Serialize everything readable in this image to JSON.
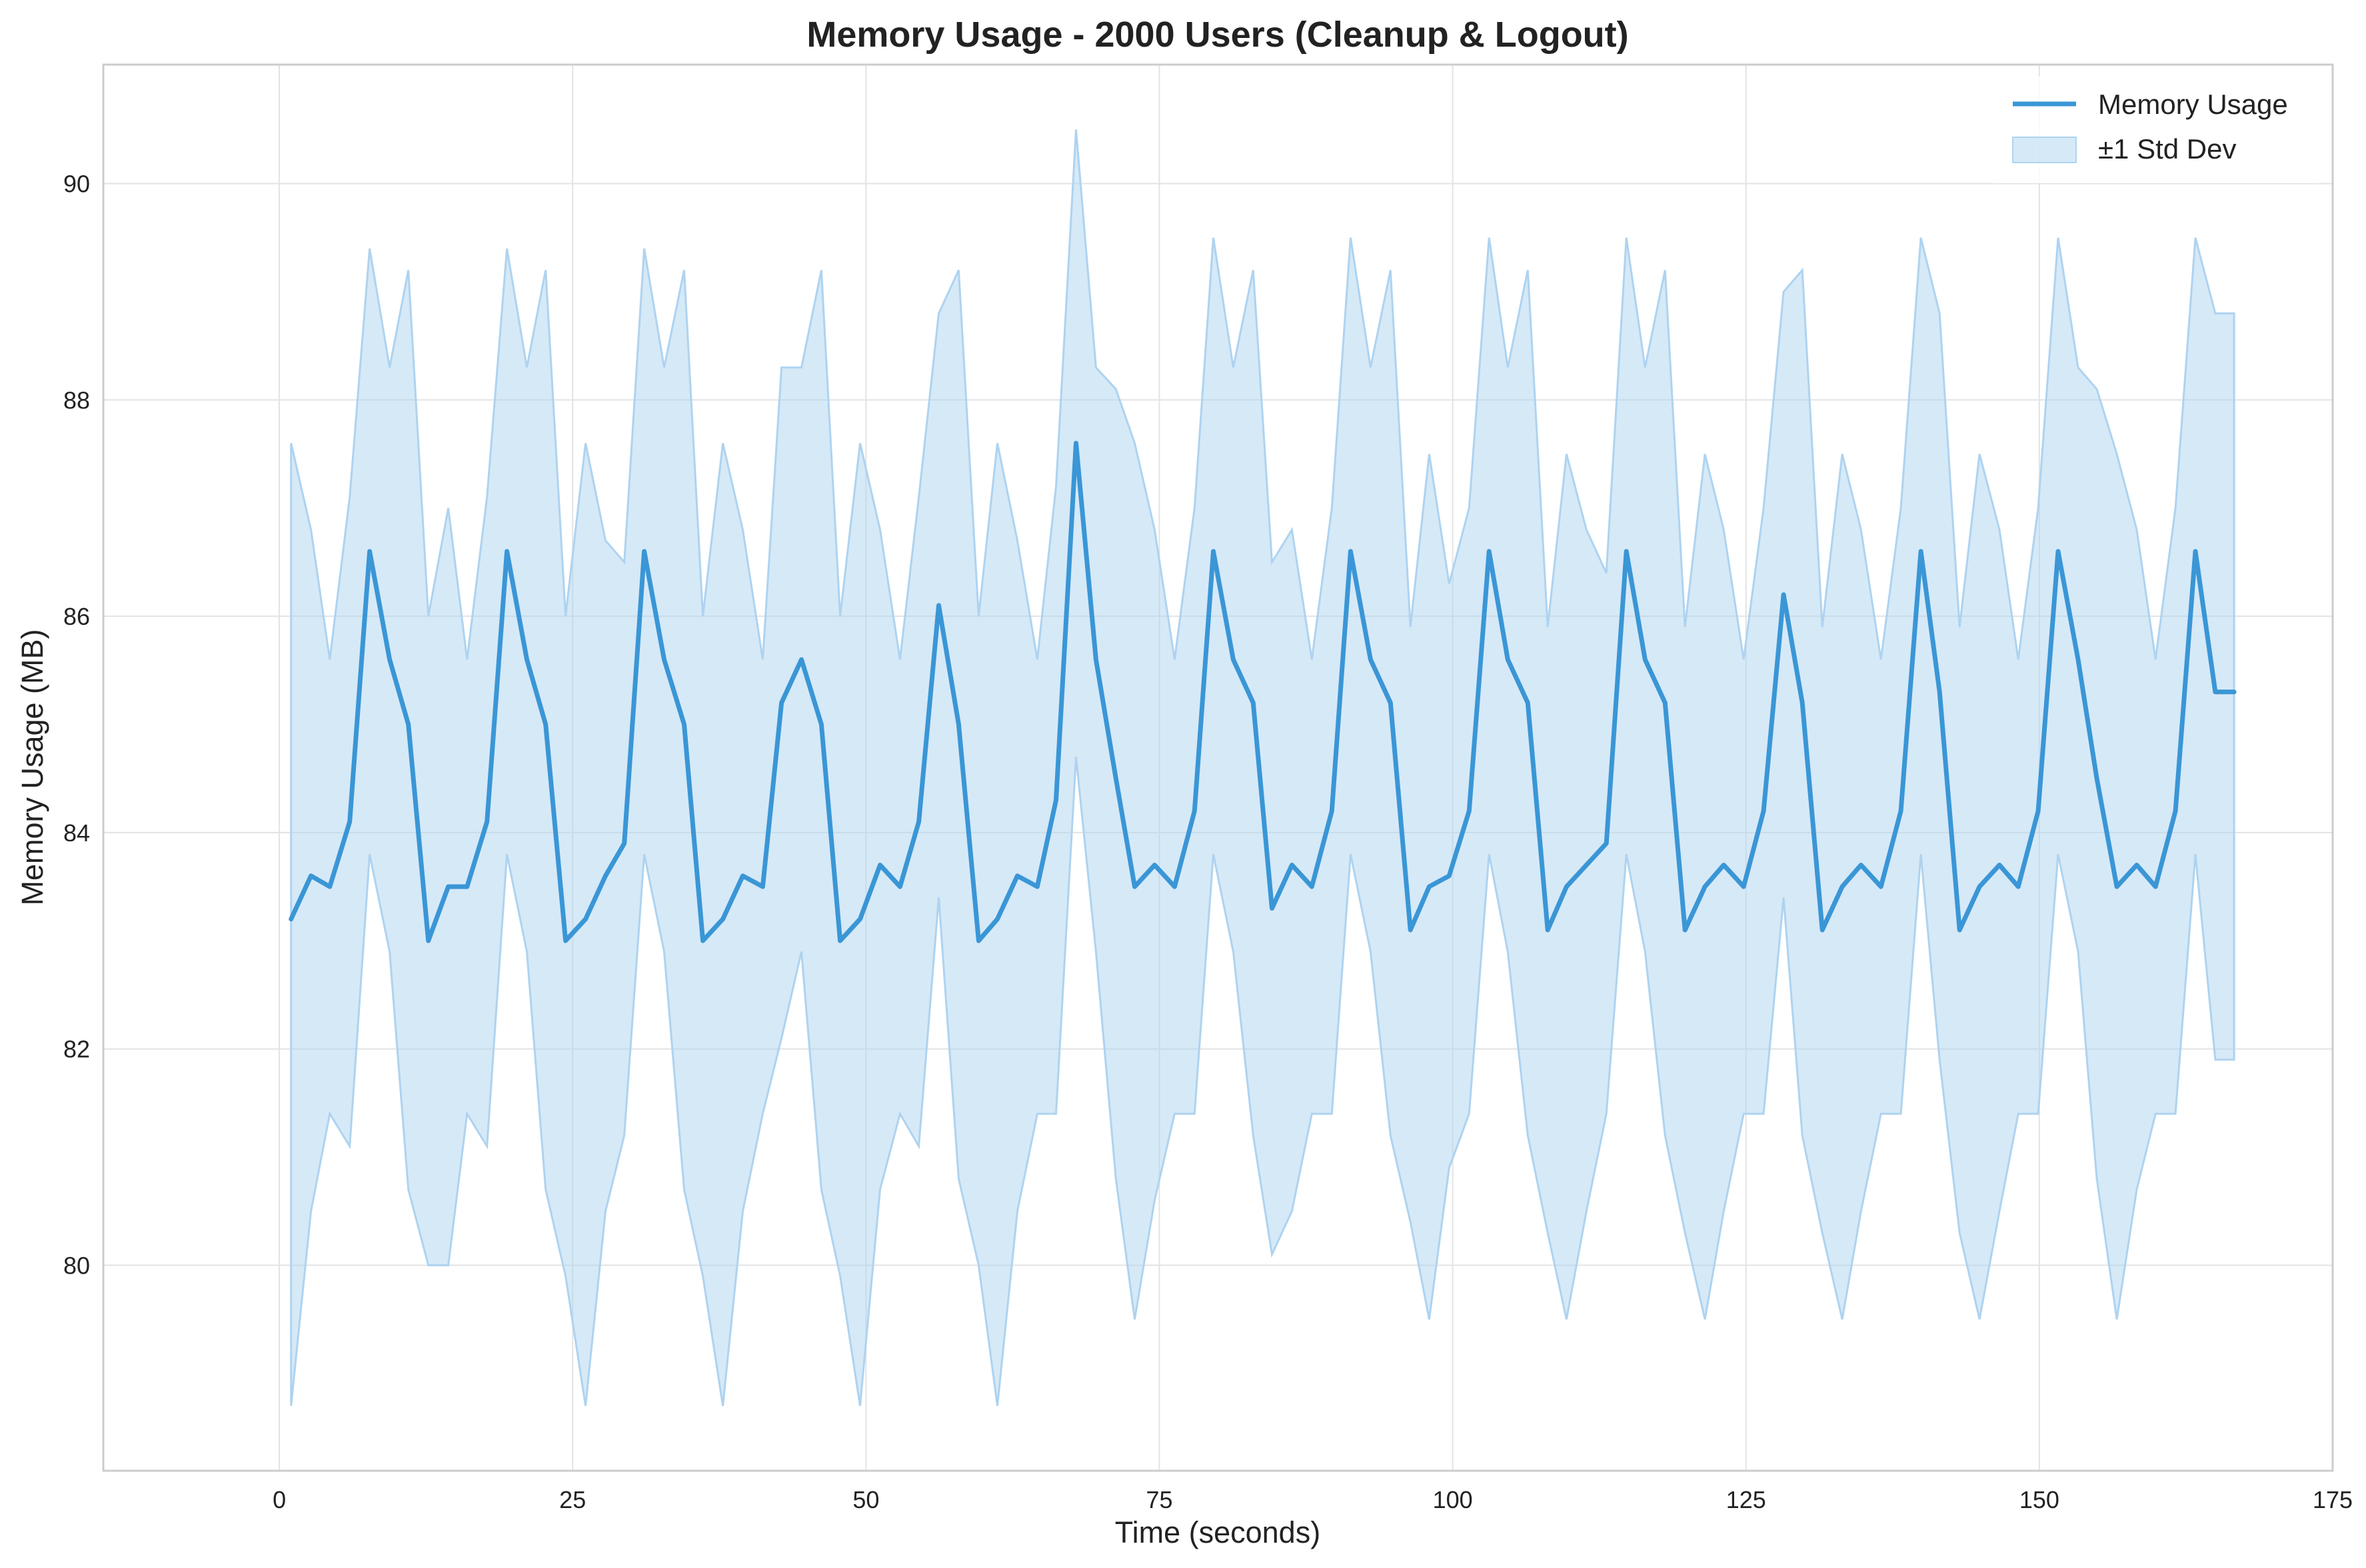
{
  "chart_data": {
    "type": "line",
    "title": "Memory Usage - 2000 Users (Cleanup & Logout)",
    "xlabel": "Time (seconds)",
    "ylabel": "Memory Usage (MB)",
    "xlim": [
      -15,
      175
    ],
    "ylim": [
      78.1,
      91.1
    ],
    "xticks": [
      0,
      25,
      50,
      75,
      100,
      125,
      150,
      175
    ],
    "yticks": [
      80,
      82,
      84,
      86,
      88,
      90
    ],
    "grid": true,
    "legend_position": "top-right",
    "series_color": "#3a96d6",
    "band_color": "#aed3f0",
    "series": [
      {
        "name": "Memory Usage",
        "x": [
          1.0,
          2.7,
          4.3,
          6.0,
          7.7,
          9.4,
          11.0,
          12.7,
          14.4,
          16.0,
          17.7,
          19.4,
          21.1,
          22.7,
          24.4,
          26.1,
          27.8,
          29.4,
          31.1,
          32.8,
          34.5,
          36.1,
          37.8,
          39.5,
          41.2,
          42.8,
          44.5,
          46.2,
          47.8,
          49.5,
          51.2,
          52.9,
          54.5,
          56.2,
          57.9,
          59.6,
          61.2,
          62.9,
          64.6,
          66.2,
          67.9,
          69.6,
          71.3,
          72.9,
          74.6,
          76.3,
          78.0,
          79.6,
          81.3,
          83.0,
          84.6,
          86.3,
          88.0,
          89.7,
          91.3,
          93.0,
          94.7,
          96.4,
          98.0,
          99.7,
          101.4,
          103.1,
          104.7,
          106.4,
          108.1,
          109.7,
          111.4,
          113.1,
          114.8,
          116.4,
          118.1,
          119.8,
          121.5,
          123.1,
          124.8,
          126.5,
          128.2,
          129.8,
          131.5,
          133.2,
          134.8,
          136.5,
          138.2,
          139.9,
          141.5,
          143.2,
          144.9,
          146.6,
          148.2,
          149.9,
          151.6,
          153.3,
          154.9,
          156.6,
          158.3,
          159.9,
          161.6,
          163.3,
          165.0,
          166.6
        ],
        "values": [
          83.2,
          83.6,
          83.5,
          84.1,
          86.6,
          85.6,
          85.0,
          83.0,
          83.5,
          83.5,
          84.1,
          86.6,
          85.6,
          85.0,
          83.0,
          83.2,
          83.6,
          83.9,
          86.6,
          85.6,
          85.0,
          83.0,
          83.2,
          83.6,
          83.5,
          85.2,
          85.6,
          85.0,
          83.0,
          83.2,
          83.7,
          83.5,
          84.1,
          86.1,
          85.0,
          83.0,
          83.2,
          83.6,
          83.5,
          84.3,
          87.6,
          85.6,
          84.5,
          83.5,
          83.7,
          83.5,
          84.2,
          86.6,
          85.6,
          85.2,
          83.3,
          83.7,
          83.5,
          84.2,
          86.6,
          85.6,
          85.2,
          83.1,
          83.5,
          83.6,
          84.2,
          86.6,
          85.6,
          85.2,
          83.1,
          83.5,
          83.7,
          83.9,
          86.6,
          85.6,
          85.2,
          83.1,
          83.5,
          83.7,
          83.5,
          84.2,
          86.2,
          85.2,
          83.1,
          83.5,
          83.7,
          83.5,
          84.2,
          86.6,
          85.3,
          83.1,
          83.5,
          83.7,
          83.5,
          84.2,
          86.6,
          85.6,
          84.5,
          83.5,
          83.7,
          83.5,
          84.2,
          86.6,
          85.3,
          85.3
        ]
      },
      {
        "name": "±1 Std Dev",
        "upper": [
          87.6,
          86.8,
          85.6,
          87.1,
          89.4,
          88.3,
          89.2,
          86.0,
          87.0,
          85.6,
          87.1,
          89.4,
          88.3,
          89.2,
          86.0,
          87.6,
          86.7,
          86.5,
          89.4,
          88.3,
          89.2,
          86.0,
          87.6,
          86.8,
          85.6,
          88.3,
          88.3,
          89.2,
          86.0,
          87.6,
          86.8,
          85.6,
          87.1,
          88.8,
          89.2,
          86.0,
          87.6,
          86.7,
          85.6,
          87.2,
          90.5,
          88.3,
          88.1,
          87.6,
          86.8,
          85.6,
          87.0,
          89.5,
          88.3,
          89.2,
          86.5,
          86.8,
          85.6,
          87.0,
          89.5,
          88.3,
          89.2,
          85.9,
          87.5,
          86.3,
          87.0,
          89.5,
          88.3,
          89.2,
          85.9,
          87.5,
          86.8,
          86.4,
          89.5,
          88.3,
          89.2,
          85.9,
          87.5,
          86.8,
          85.6,
          87.0,
          89.0,
          89.2,
          85.9,
          87.5,
          86.8,
          85.6,
          87.0,
          89.5,
          88.8,
          85.9,
          87.5,
          86.8,
          85.6,
          87.0,
          89.5,
          88.3,
          88.1,
          87.5,
          86.8,
          85.6,
          87.0,
          89.5,
          88.8,
          88.8
        ],
        "lower": [
          78.7,
          80.5,
          81.4,
          81.1,
          83.8,
          82.9,
          80.7,
          80.0,
          80.0,
          81.4,
          81.1,
          83.8,
          82.9,
          80.7,
          79.9,
          78.7,
          80.5,
          81.2,
          83.8,
          82.9,
          80.7,
          79.9,
          78.7,
          80.5,
          81.4,
          82.1,
          82.9,
          80.7,
          79.9,
          78.7,
          80.7,
          81.4,
          81.1,
          83.4,
          80.8,
          80.0,
          78.7,
          80.5,
          81.4,
          81.4,
          84.7,
          82.9,
          80.8,
          79.5,
          80.6,
          81.4,
          81.4,
          83.8,
          82.9,
          81.2,
          80.1,
          80.5,
          81.4,
          81.4,
          83.8,
          82.9,
          81.2,
          80.4,
          79.5,
          80.9,
          81.4,
          83.8,
          82.9,
          81.2,
          80.3,
          79.5,
          80.5,
          81.4,
          83.8,
          82.9,
          81.2,
          80.3,
          79.5,
          80.5,
          81.4,
          81.4,
          83.4,
          81.2,
          80.3,
          79.5,
          80.5,
          81.4,
          81.4,
          83.8,
          81.9,
          80.3,
          79.5,
          80.5,
          81.4,
          81.4,
          83.8,
          82.9,
          80.8,
          79.5,
          80.7,
          81.4,
          81.4,
          83.8,
          81.9,
          81.9
        ]
      }
    ]
  }
}
